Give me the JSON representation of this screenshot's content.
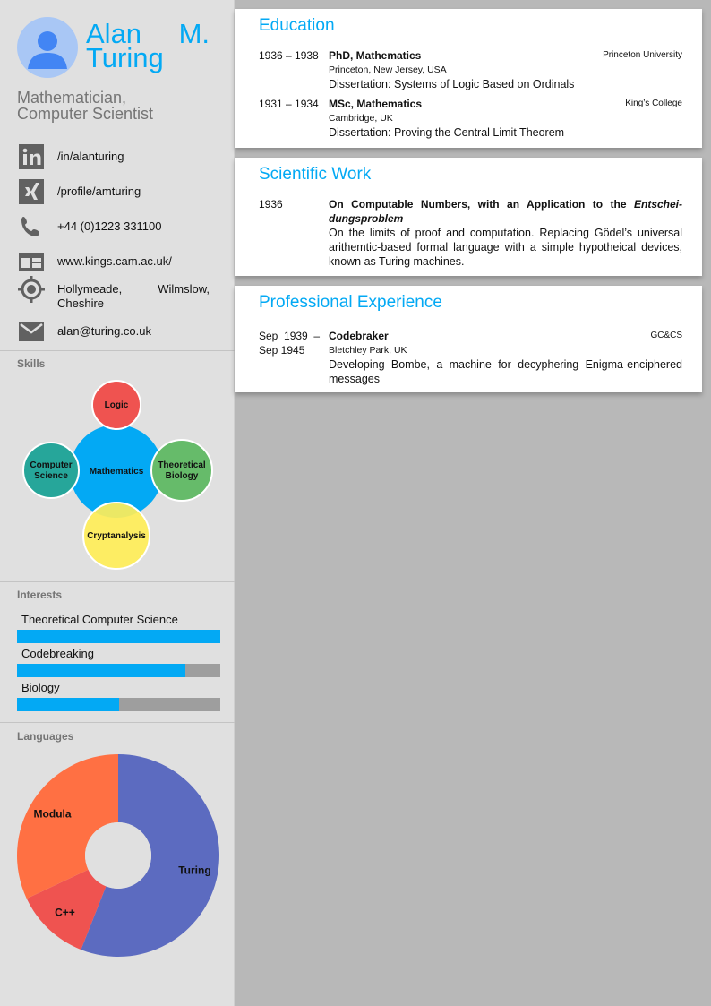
{
  "profile": {
    "first_name": "Alan",
    "middle_initial": "M.",
    "last_name": "Turing",
    "subtitle_line1": "Mathematician,",
    "subtitle_line2": "Computer Scientist"
  },
  "contacts": [
    {
      "icon": "linkedin-icon",
      "text": "/in/alanturing"
    },
    {
      "icon": "xing-icon",
      "text": "/profile/amturing"
    },
    {
      "icon": "phone-icon",
      "text": "+44 (0)1223 331100"
    },
    {
      "icon": "browser-icon",
      "text": "www.kings.cam.ac.uk/"
    },
    {
      "icon": "location-icon",
      "text": "Hollymeade, Wilmslow, Cheshire"
    },
    {
      "icon": "email-icon",
      "text": "alan@turing.co.uk"
    }
  ],
  "skills": {
    "label": "Skills",
    "center": "Mathematics",
    "bubbles": [
      {
        "line1": "Logic",
        "line2": "",
        "color": "#ef5350"
      },
      {
        "line1": "Theoretical",
        "line2": "Biology",
        "color": "#66bb6a"
      },
      {
        "line1": "Cryptanalysis",
        "line2": "",
        "color": "#ffee58"
      },
      {
        "line1": "Computer",
        "line2": "Science",
        "color": "#26a69a"
      }
    ],
    "center_color": "#03a9f4"
  },
  "interests": {
    "label": "Interests",
    "items": [
      {
        "name": "Theoretical Computer Science",
        "level": 1.0
      },
      {
        "name": "Codebreaking",
        "level": 0.83
      },
      {
        "name": "Biology",
        "level": 0.5
      }
    ]
  },
  "languages": {
    "label": "Languages",
    "slices": [
      {
        "name": "Turing",
        "value": 56,
        "color": "#5c6bc0"
      },
      {
        "name": "C++",
        "value": 12,
        "color": "#ef5350"
      },
      {
        "name": "Modula",
        "value": 32,
        "color": "#ff7043"
      }
    ]
  },
  "education": {
    "title": "Education",
    "entries": [
      {
        "date": "1936 – 1938",
        "degree": "PhD, Mathematics",
        "org": "Princeton University",
        "location": "Princeton, New Jersey, USA",
        "desc": "Dissertation: Systems of Logic Based on Ordinals"
      },
      {
        "date": "1931 – 1934",
        "degree": "MSc, Mathematics",
        "org": "King’s College",
        "location": "Cambridge, UK",
        "desc": "Dissertation: Proving the Central Limit Theorem"
      }
    ]
  },
  "scientific": {
    "title": "Scientific Work",
    "entries": [
      {
        "date": "1936",
        "title_plain": "On Computable Numbers, with an Application to the ",
        "title_italic1": "Entschei-",
        "title_italic2": "dungsproblem",
        "desc": "On the limits of proof and computation. Replacing Gödel’s universal arithemtic-based formal language with a simple hypotheical devices, known as Turing machines."
      }
    ]
  },
  "experience": {
    "title": "Professional Experience",
    "entries": [
      {
        "date_line1": "Sep  1939  –",
        "date_line2": "Sep 1945",
        "role": "Codebraker",
        "org": "GC&CS",
        "location": "Bletchley Park, UK",
        "desc": "Developing Bombe, a machine for decyphering Enigma-enciphered messages"
      }
    ]
  }
}
